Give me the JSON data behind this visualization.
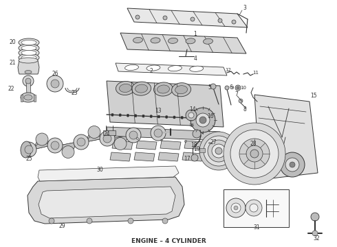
{
  "title": "ENGINE – 4 CYLINDER",
  "title_fontsize": 6.5,
  "bg_color": "#ffffff",
  "line_color": "#333333",
  "gray_light": "#dddddd",
  "gray_mid": "#bbbbbb",
  "gray_dark": "#888888"
}
